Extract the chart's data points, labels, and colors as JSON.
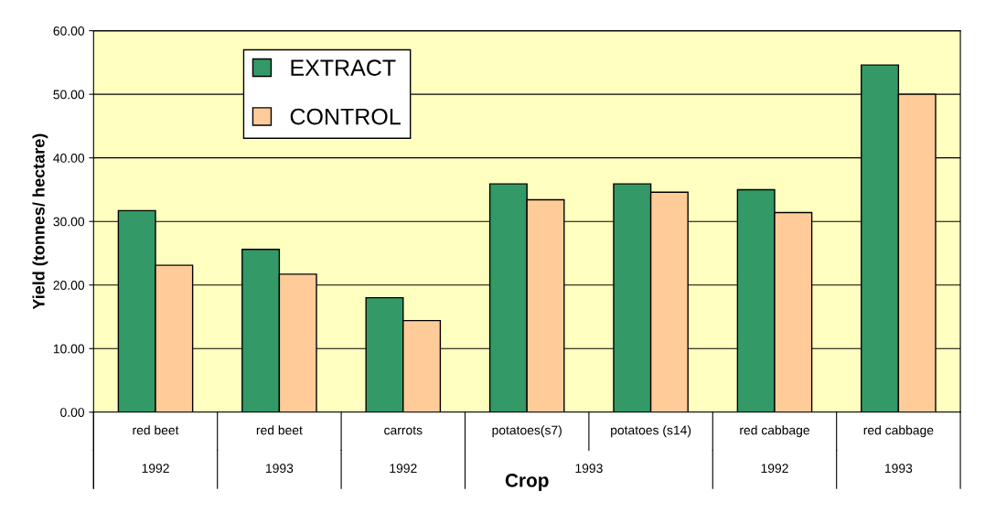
{
  "chart_data": {
    "type": "bar",
    "xlabel": "Crop",
    "ylabel": "Yield (tonnes/ hectare)",
    "categories": [
      "red beet",
      "red beet",
      "carrots",
      "potatoes(s7)",
      "potatoes (s14)",
      "red cabbage",
      "red cabbage"
    ],
    "annotations": [
      "1992",
      "1993",
      "1992",
      "1993",
      "1992",
      "1993"
    ],
    "series": [
      {
        "name": "EXTRACT",
        "color": "#339966",
        "values": [
          31.7,
          25.6,
          18.0,
          35.9,
          35.9,
          35.0,
          54.6
        ]
      },
      {
        "name": "CONTROL",
        "color": "#ffcc99",
        "values": [
          23.1,
          21.7,
          14.4,
          33.4,
          34.6,
          31.4,
          50.0
        ]
      }
    ],
    "ylim": [
      0,
      60
    ],
    "yticks": [
      {
        "value": 0,
        "label": "0.00"
      },
      {
        "value": 10,
        "label": "10.00"
      },
      {
        "value": 20,
        "label": "20.00"
      },
      {
        "value": 30,
        "label": "30.00"
      },
      {
        "value": 40,
        "label": "40.00"
      },
      {
        "value": 50,
        "label": "50.00"
      },
      {
        "value": 60,
        "label": "60.00"
      }
    ],
    "grid": "y",
    "legend": "top left"
  }
}
